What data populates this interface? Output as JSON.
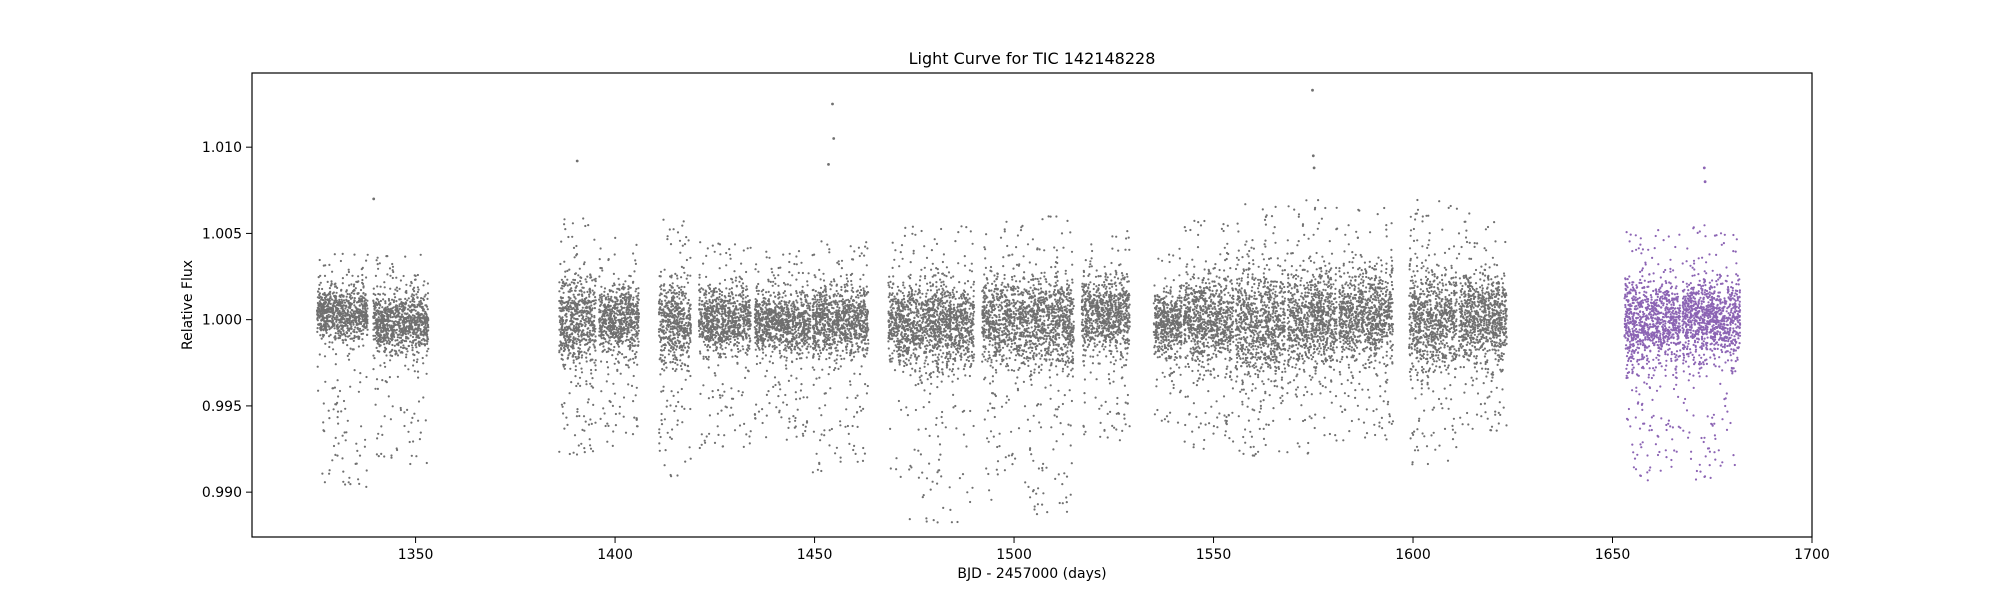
{
  "chart_data": {
    "type": "scatter",
    "title": "Light Curve for TIC 142148228",
    "xlabel": "BJD - 2457000 (days)",
    "ylabel": "Relative Flux",
    "xlim": [
      1309,
      1700
    ],
    "ylim": [
      0.9874,
      1.0143
    ],
    "x_ticks": [
      1350,
      1400,
      1450,
      1500,
      1550,
      1600,
      1650,
      1700
    ],
    "y_ticks": [
      0.99,
      0.995,
      1.0,
      1.005,
      1.01
    ],
    "x_tick_labels": [
      "1350",
      "1400",
      "1450",
      "1500",
      "1550",
      "1600",
      "1650",
      "1700"
    ],
    "y_tick_labels": [
      "0.990",
      "0.995",
      "1.000",
      "1.005",
      "1.010"
    ],
    "grid": false,
    "legend": "none",
    "series": [
      {
        "color": "#707070",
        "segments": [
          {
            "x": [
              1325.3,
              1338.0
            ],
            "min": 0.9902,
            "max": 1.004,
            "med": 1.0003
          },
          {
            "x": [
              1339.4,
              1353.2
            ],
            "min": 0.9916,
            "max": 1.0038,
            "med": 0.9998
          },
          {
            "x": [
              1386.0,
              1395.2
            ],
            "min": 0.9921,
            "max": 1.006,
            "med": 1.0
          },
          {
            "x": [
              1396.0,
              1406.0
            ],
            "min": 0.9924,
            "max": 1.0048,
            "med": 1.0
          },
          {
            "x": [
              1411.0,
              1419.0
            ],
            "min": 0.9906,
            "max": 1.006,
            "med": 0.9998
          },
          {
            "x": [
              1421.0,
              1434.0
            ],
            "min": 0.9925,
            "max": 1.0045,
            "med": 1.0
          },
          {
            "x": [
              1435.0,
              1449.0
            ],
            "min": 0.993,
            "max": 1.004,
            "med": 0.9998
          },
          {
            "x": [
              1449.5,
              1463.5
            ],
            "min": 0.991,
            "max": 1.0047,
            "med": 1.0
          },
          {
            "x": [
              1468.5,
              1490.0
            ],
            "min": 0.988,
            "max": 1.0055,
            "med": 0.9997
          },
          {
            "x": [
              1492.0,
              1515.0
            ],
            "min": 0.9885,
            "max": 1.006,
            "med": 0.9999
          },
          {
            "x": [
              1517.0,
              1529.0
            ],
            "min": 0.993,
            "max": 1.0052,
            "med": 1.0003
          },
          {
            "x": [
              1535.0,
              1542.0
            ],
            "min": 0.994,
            "max": 1.0043,
            "med": 0.9998
          },
          {
            "x": [
              1542.5,
              1555.0
            ],
            "min": 0.9925,
            "max": 1.0058,
            "med": 1.0
          },
          {
            "x": [
              1555.5,
              1568.0
            ],
            "min": 0.992,
            "max": 1.007,
            "med": 0.9997
          },
          {
            "x": [
              1568.5,
              1581.0
            ],
            "min": 0.9922,
            "max": 1.007,
            "med": 1.0
          },
          {
            "x": [
              1581.5,
              1595.0
            ],
            "min": 0.993,
            "max": 1.0065,
            "med": 1.0002
          },
          {
            "x": [
              1599.0,
              1611.0
            ],
            "min": 0.9915,
            "max": 1.007,
            "med": 1.0
          },
          {
            "x": [
              1611.5,
              1623.5
            ],
            "min": 0.9935,
            "max": 1.0062,
            "med": 1.0001
          }
        ],
        "outliers": [
          {
            "x": 1339.5,
            "y": 1.007
          },
          {
            "x": 1390.5,
            "y": 1.0092
          },
          {
            "x": 1454.5,
            "y": 1.0125
          },
          {
            "x": 1454.8,
            "y": 1.0105
          },
          {
            "x": 1453.5,
            "y": 1.009
          },
          {
            "x": 1574.8,
            "y": 1.0133
          },
          {
            "x": 1575.0,
            "y": 1.0095
          },
          {
            "x": 1575.2,
            "y": 1.0088
          }
        ]
      },
      {
        "color": "#8c64b4",
        "segments": [
          {
            "x": [
              1653.0,
              1667.0
            ],
            "min": 0.9903,
            "max": 1.0053,
            "med": 0.9998
          },
          {
            "x": [
              1667.5,
              1682.0
            ],
            "min": 0.9905,
            "max": 1.0056,
            "med": 1.0
          }
        ],
        "outliers": [
          {
            "x": 1673.0,
            "y": 1.0088
          },
          {
            "x": 1673.2,
            "y": 1.008
          }
        ]
      }
    ]
  }
}
